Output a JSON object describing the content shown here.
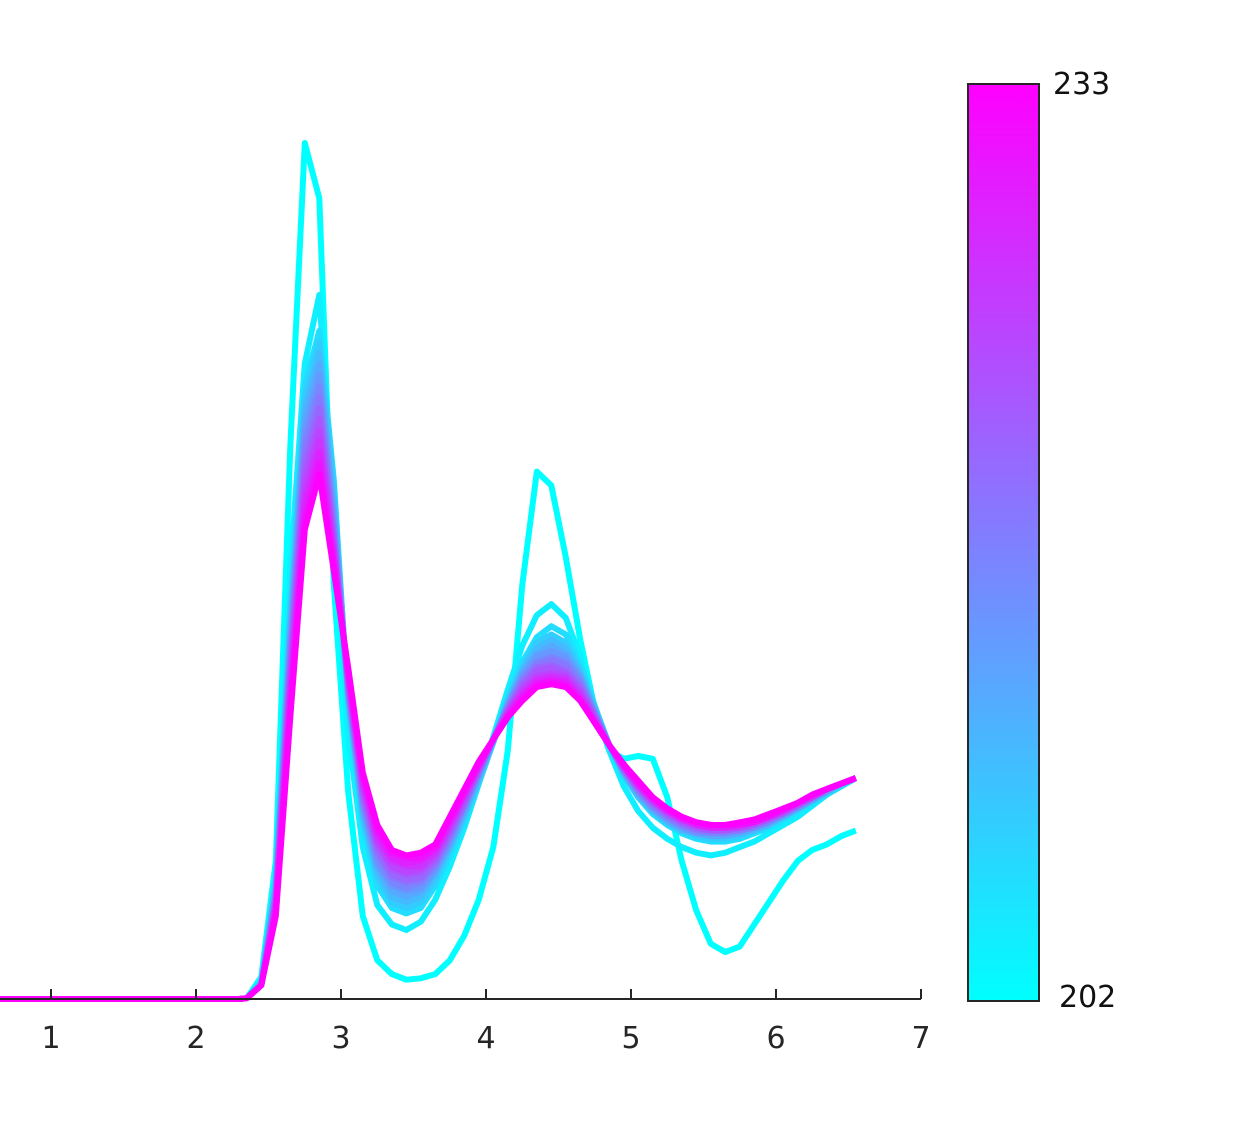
{
  "chart_data": {
    "type": "line",
    "title": "",
    "xlabel": "",
    "ylabel": "",
    "xlim": [
      0.35,
      7
    ],
    "ylim": [
      0,
      3.1
    ],
    "xticks": [
      "1",
      "2",
      "3",
      "4",
      "5",
      "6",
      "7"
    ],
    "xtick_values": [
      1,
      2,
      3,
      4,
      5,
      6,
      7
    ],
    "y_axis_visible": false,
    "grid": false,
    "legend": "none",
    "x": [
      0.35,
      2.3,
      2.35,
      2.45,
      2.55,
      2.65,
      2.75,
      2.85,
      2.95,
      3.05,
      3.15,
      3.25,
      3.35,
      3.45,
      3.55,
      3.65,
      3.75,
      3.85,
      3.95,
      4.05,
      4.15,
      4.25,
      4.35,
      4.45,
      4.55,
      4.65,
      4.75,
      4.85,
      4.95,
      5.05,
      5.15,
      5.25,
      5.35,
      5.45,
      5.55,
      5.65,
      5.75,
      5.85,
      5.95,
      6.05,
      6.15,
      6.25,
      6.35,
      6.45,
      6.55
    ],
    "colorbar": {
      "min": 202,
      "max": 233,
      "min_label": "202",
      "max_label": "233",
      "colormap": "cool",
      "color_min": "#00ffff",
      "color_max": "#ff00ff"
    },
    "series_count": 16,
    "series": [
      {
        "values": [
          0,
          0,
          0.003,
          0.08,
          0.5,
          2.0,
          3.1,
          2.9,
          1.5,
          0.75,
          0.3,
          0.14,
          0.09,
          0.07,
          0.075,
          0.09,
          0.14,
          0.23,
          0.36,
          0.55,
          0.9,
          1.5,
          1.91,
          1.86,
          1.6,
          1.3,
          1.05,
          0.9,
          0.87,
          0.88,
          0.87,
          0.73,
          0.5,
          0.32,
          0.2,
          0.17,
          0.19,
          0.27,
          0.35,
          0.43,
          0.5,
          0.54,
          0.56,
          0.59,
          0.61
        ]
      },
      {
        "values": [
          0,
          0,
          0.003,
          0.06,
          0.4,
          1.55,
          2.3,
          2.55,
          1.75,
          0.96,
          0.55,
          0.34,
          0.27,
          0.25,
          0.28,
          0.36,
          0.48,
          0.62,
          0.78,
          0.95,
          1.12,
          1.28,
          1.39,
          1.43,
          1.38,
          1.24,
          1.06,
          0.9,
          0.77,
          0.68,
          0.62,
          0.58,
          0.55,
          0.53,
          0.52,
          0.53,
          0.55,
          0.57,
          0.6,
          0.63,
          0.66,
          0.7,
          0.74,
          0.78,
          0.8
        ]
      },
      {
        "values": [
          0,
          0,
          0.003,
          0.06,
          0.45,
          1.42,
          2.22,
          2.42,
          1.88,
          1.06,
          0.63,
          0.41,
          0.33,
          0.31,
          0.33,
          0.41,
          0.52,
          0.64,
          0.78,
          0.93,
          1.09,
          1.22,
          1.31,
          1.35,
          1.32,
          1.21,
          1.06,
          0.92,
          0.81,
          0.73,
          0.67,
          0.63,
          0.6,
          0.58,
          0.57,
          0.57,
          0.58,
          0.6,
          0.62,
          0.65,
          0.68,
          0.71,
          0.74,
          0.77,
          0.8
        ]
      },
      {
        "values": [
          0,
          0,
          0.003,
          0.06,
          0.42,
          1.38,
          2.18,
          2.38,
          1.84,
          1.08,
          0.66,
          0.44,
          0.35,
          0.33,
          0.35,
          0.43,
          0.54,
          0.66,
          0.79,
          0.93,
          1.08,
          1.2,
          1.29,
          1.32,
          1.29,
          1.19,
          1.05,
          0.92,
          0.81,
          0.73,
          0.68,
          0.64,
          0.61,
          0.59,
          0.58,
          0.58,
          0.59,
          0.61,
          0.63,
          0.66,
          0.69,
          0.72,
          0.75,
          0.78,
          0.8
        ]
      },
      {
        "values": [
          0,
          0,
          0.003,
          0.06,
          0.41,
          1.35,
          2.14,
          2.34,
          1.8,
          1.09,
          0.67,
          0.46,
          0.37,
          0.35,
          0.37,
          0.45,
          0.55,
          0.67,
          0.8,
          0.93,
          1.07,
          1.19,
          1.27,
          1.3,
          1.27,
          1.18,
          1.05,
          0.92,
          0.82,
          0.74,
          0.68,
          0.64,
          0.61,
          0.6,
          0.59,
          0.59,
          0.6,
          0.61,
          0.63,
          0.66,
          0.69,
          0.72,
          0.75,
          0.78,
          0.8
        ]
      },
      {
        "values": [
          0,
          0,
          0.003,
          0.05,
          0.4,
          1.32,
          2.1,
          2.3,
          1.77,
          1.1,
          0.69,
          0.48,
          0.39,
          0.37,
          0.39,
          0.46,
          0.56,
          0.68,
          0.81,
          0.94,
          1.07,
          1.18,
          1.25,
          1.28,
          1.25,
          1.17,
          1.04,
          0.92,
          0.82,
          0.74,
          0.69,
          0.65,
          0.62,
          0.6,
          0.59,
          0.59,
          0.6,
          0.62,
          0.64,
          0.66,
          0.69,
          0.72,
          0.75,
          0.78,
          0.8
        ]
      },
      {
        "values": [
          0,
          0,
          0.003,
          0.05,
          0.39,
          1.29,
          2.06,
          2.26,
          1.74,
          1.11,
          0.7,
          0.49,
          0.41,
          0.39,
          0.4,
          0.47,
          0.57,
          0.69,
          0.81,
          0.94,
          1.06,
          1.17,
          1.24,
          1.26,
          1.24,
          1.16,
          1.04,
          0.92,
          0.82,
          0.75,
          0.69,
          0.65,
          0.62,
          0.6,
          0.6,
          0.6,
          0.61,
          0.62,
          0.64,
          0.67,
          0.69,
          0.72,
          0.75,
          0.78,
          0.8
        ]
      },
      {
        "values": [
          0,
          0,
          0.003,
          0.05,
          0.38,
          1.26,
          2.02,
          2.22,
          1.71,
          1.12,
          0.72,
          0.51,
          0.42,
          0.4,
          0.42,
          0.48,
          0.58,
          0.7,
          0.82,
          0.94,
          1.06,
          1.16,
          1.22,
          1.24,
          1.22,
          1.15,
          1.03,
          0.92,
          0.83,
          0.75,
          0.7,
          0.66,
          0.63,
          0.61,
          0.6,
          0.6,
          0.61,
          0.62,
          0.64,
          0.67,
          0.7,
          0.73,
          0.76,
          0.78,
          0.8
        ]
      },
      {
        "values": [
          0,
          0,
          0.003,
          0.05,
          0.37,
          1.23,
          1.98,
          2.18,
          1.69,
          1.13,
          0.73,
          0.53,
          0.44,
          0.42,
          0.43,
          0.49,
          0.59,
          0.7,
          0.82,
          0.94,
          1.05,
          1.15,
          1.21,
          1.23,
          1.21,
          1.14,
          1.03,
          0.92,
          0.83,
          0.76,
          0.7,
          0.66,
          0.63,
          0.61,
          0.61,
          0.61,
          0.61,
          0.63,
          0.65,
          0.67,
          0.7,
          0.73,
          0.76,
          0.78,
          0.8
        ]
      },
      {
        "values": [
          0,
          0,
          0.003,
          0.05,
          0.36,
          1.2,
          1.94,
          2.14,
          1.67,
          1.14,
          0.74,
          0.54,
          0.45,
          0.43,
          0.44,
          0.5,
          0.6,
          0.71,
          0.83,
          0.94,
          1.05,
          1.14,
          1.2,
          1.21,
          1.19,
          1.13,
          1.02,
          0.92,
          0.83,
          0.76,
          0.71,
          0.67,
          0.64,
          0.62,
          0.61,
          0.61,
          0.62,
          0.63,
          0.65,
          0.67,
          0.7,
          0.73,
          0.76,
          0.78,
          0.8
        ]
      },
      {
        "values": [
          0,
          0,
          0.003,
          0.05,
          0.35,
          1.17,
          1.9,
          2.1,
          1.65,
          1.15,
          0.76,
          0.56,
          0.47,
          0.45,
          0.46,
          0.51,
          0.61,
          0.72,
          0.83,
          0.94,
          1.04,
          1.13,
          1.19,
          1.2,
          1.18,
          1.12,
          1.02,
          0.92,
          0.84,
          0.77,
          0.71,
          0.67,
          0.64,
          0.62,
          0.61,
          0.61,
          0.62,
          0.63,
          0.65,
          0.68,
          0.7,
          0.73,
          0.76,
          0.78,
          0.8
        ]
      },
      {
        "values": [
          0,
          0,
          0.003,
          0.05,
          0.34,
          1.14,
          1.86,
          2.06,
          1.63,
          1.16,
          0.77,
          0.57,
          0.48,
          0.46,
          0.47,
          0.52,
          0.62,
          0.73,
          0.84,
          0.94,
          1.04,
          1.12,
          1.17,
          1.18,
          1.17,
          1.11,
          1.01,
          0.92,
          0.84,
          0.77,
          0.72,
          0.68,
          0.65,
          0.63,
          0.62,
          0.62,
          0.62,
          0.64,
          0.66,
          0.68,
          0.71,
          0.73,
          0.76,
          0.78,
          0.8
        ]
      },
      {
        "values": [
          0,
          0,
          0.003,
          0.05,
          0.33,
          1.11,
          1.82,
          2.02,
          1.61,
          1.17,
          0.78,
          0.58,
          0.5,
          0.48,
          0.48,
          0.53,
          0.63,
          0.74,
          0.84,
          0.94,
          1.03,
          1.11,
          1.16,
          1.17,
          1.16,
          1.1,
          1.01,
          0.92,
          0.84,
          0.77,
          0.72,
          0.68,
          0.65,
          0.63,
          0.62,
          0.62,
          0.63,
          0.64,
          0.66,
          0.68,
          0.71,
          0.73,
          0.76,
          0.78,
          0.8
        ]
      },
      {
        "values": [
          0,
          0,
          0.003,
          0.05,
          0.32,
          1.08,
          1.78,
          1.98,
          1.59,
          1.18,
          0.8,
          0.6,
          0.51,
          0.49,
          0.5,
          0.54,
          0.64,
          0.74,
          0.85,
          0.94,
          1.03,
          1.1,
          1.15,
          1.16,
          1.15,
          1.09,
          1.0,
          0.92,
          0.84,
          0.78,
          0.72,
          0.68,
          0.65,
          0.63,
          0.62,
          0.62,
          0.63,
          0.64,
          0.66,
          0.68,
          0.71,
          0.74,
          0.76,
          0.78,
          0.8
        ]
      },
      {
        "values": [
          0,
          0,
          0.003,
          0.05,
          0.31,
          1.05,
          1.74,
          1.94,
          1.57,
          1.19,
          0.81,
          0.61,
          0.53,
          0.51,
          0.51,
          0.55,
          0.65,
          0.75,
          0.85,
          0.94,
          1.02,
          1.09,
          1.14,
          1.15,
          1.14,
          1.08,
          1.0,
          0.92,
          0.85,
          0.78,
          0.73,
          0.69,
          0.66,
          0.64,
          0.63,
          0.63,
          0.63,
          0.64,
          0.66,
          0.69,
          0.71,
          0.74,
          0.76,
          0.78,
          0.8
        ]
      },
      {
        "values": [
          0,
          0,
          0.003,
          0.05,
          0.3,
          1.02,
          1.7,
          1.9,
          1.55,
          1.2,
          0.82,
          0.63,
          0.54,
          0.52,
          0.53,
          0.56,
          0.66,
          0.76,
          0.86,
          0.94,
          1.02,
          1.08,
          1.13,
          1.14,
          1.13,
          1.08,
          1.0,
          0.92,
          0.85,
          0.79,
          0.73,
          0.69,
          0.66,
          0.64,
          0.63,
          0.63,
          0.64,
          0.65,
          0.67,
          0.69,
          0.71,
          0.74,
          0.76,
          0.78,
          0.8
        ]
      }
    ]
  }
}
